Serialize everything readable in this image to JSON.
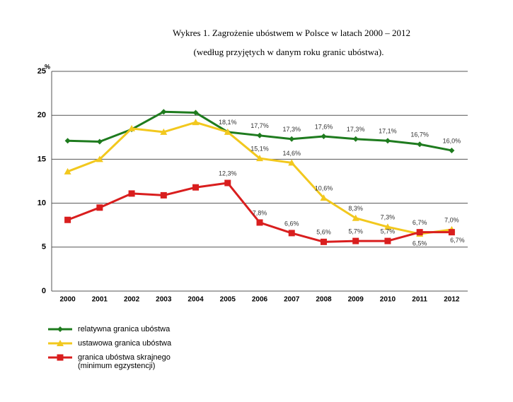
{
  "chart_data": {
    "type": "line",
    "title": "Wykres 1. Zagrożenie ubóstwem w Polsce w latach 2000 – 2012",
    "subtitle": "(według przyjętych w danym roku granic ubóstwa).",
    "y_label": "%",
    "categories": [
      "2000",
      "2001",
      "2002",
      "2003",
      "2004",
      "2005",
      "2006",
      "2007",
      "2008",
      "2009",
      "2010",
      "2011",
      "2012"
    ],
    "ylim": [
      0,
      25
    ],
    "yticks": [
      0,
      5,
      10,
      15,
      20,
      25
    ],
    "grid": true,
    "legend": "bottom-left",
    "series": [
      {
        "name": "relatywna granica ubóstwa",
        "color": "#1e7b1e",
        "marker": "diamond",
        "values": [
          17.1,
          17.0,
          18.4,
          20.4,
          20.3,
          18.1,
          17.7,
          17.3,
          17.6,
          17.3,
          17.1,
          16.7,
          16.0
        ],
        "value_labels": [
          null,
          null,
          null,
          null,
          null,
          "18,1%",
          "17,7%",
          "17,3%",
          "17,6%",
          "17,3%",
          "17,1%",
          "16,7%",
          "16,0%"
        ]
      },
      {
        "name": "ustawowa granica ubóstwa",
        "color": "#f2c81e",
        "marker": "triangle",
        "values": [
          13.6,
          15.0,
          18.5,
          18.1,
          19.2,
          18.1,
          15.1,
          14.6,
          10.6,
          8.3,
          7.3,
          6.5,
          7.0
        ],
        "value_labels": [
          null,
          null,
          null,
          null,
          null,
          null,
          "15,1%",
          "14,6%",
          "10,6%",
          "8,3%",
          "7,3%",
          "6,5%",
          "7,0%"
        ]
      },
      {
        "name": "granica ubóstwa skrajnego (minimum egzystencji)",
        "color": "#d91e1e",
        "marker": "square",
        "values": [
          8.1,
          9.5,
          11.1,
          10.9,
          11.8,
          12.3,
          7.8,
          6.6,
          5.6,
          5.7,
          5.7,
          6.7,
          6.7
        ],
        "value_labels": [
          null,
          null,
          null,
          null,
          null,
          "12,3%",
          "7,8%",
          "6,6%",
          "5,6%",
          "5,7%",
          "5,7%",
          "6,7%",
          "6,7%"
        ]
      }
    ]
  }
}
